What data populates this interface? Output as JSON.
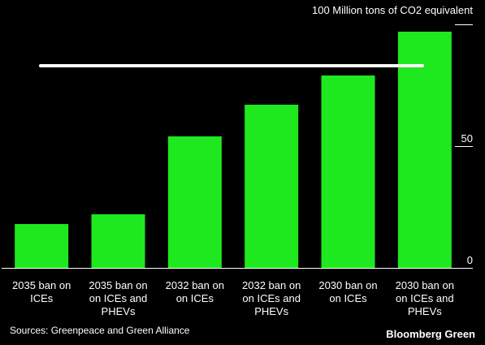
{
  "chart_data": {
    "type": "bar",
    "unit_label": "100 Million tons of CO2 equivalent",
    "categories": [
      [
        "2035 ban on",
        "ICEs"
      ],
      [
        "2035 ban on",
        "on ICEs and",
        "PHEVs"
      ],
      [
        "2032 ban on",
        "on ICEs"
      ],
      [
        "2032 ban on",
        "on ICEs and",
        "PHEVs"
      ],
      [
        "2030 ban on",
        "on ICEs"
      ],
      [
        "2030 ban on",
        "on ICEs and",
        "PHEVs"
      ]
    ],
    "values": [
      18,
      22,
      54,
      67,
      79,
      97
    ],
    "reference_line": 83,
    "ylim": [
      0,
      100
    ],
    "yticks": [
      0,
      50
    ],
    "grid": false,
    "bar_color": "#1ee81e",
    "line_color": "#ffffff"
  },
  "source": "Sources: Greenpeace and Green Alliance",
  "brand": "Bloomberg Green"
}
